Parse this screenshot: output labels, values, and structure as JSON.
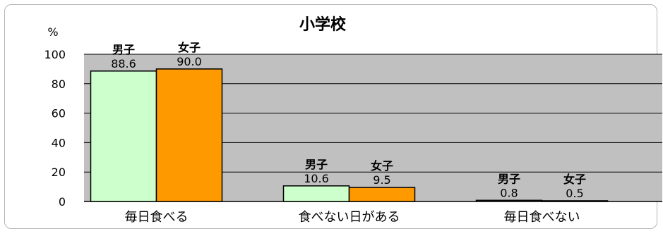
{
  "chart_data": {
    "type": "bar",
    "title": "小学校",
    "ylabel": "%",
    "ylim": [
      0,
      100
    ],
    "yticks": [
      0,
      20,
      40,
      60,
      80,
      100
    ],
    "categories": [
      "毎日食べる",
      "食べない日がある",
      "毎日食べない"
    ],
    "series": [
      {
        "name": "男子",
        "values": [
          88.6,
          10.6,
          0.8
        ],
        "value_labels": [
          "88.6",
          "10.6",
          "0.8"
        ],
        "color": "#ccffcc"
      },
      {
        "name": "女子",
        "values": [
          90.0,
          9.5,
          0.5
        ],
        "value_labels": [
          "90.0",
          "9.5",
          "0.5"
        ],
        "color": "#ff9900"
      }
    ],
    "plot_background": "#c0c0c0",
    "grid": true,
    "legend": "none"
  }
}
